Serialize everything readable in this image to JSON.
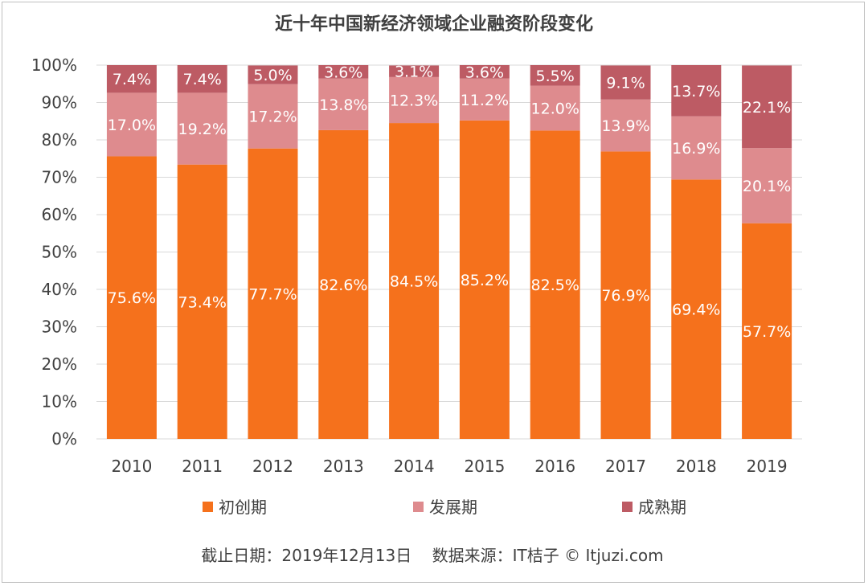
{
  "chart_data": {
    "type": "bar",
    "stacked": true,
    "title": "近十年中国新经济领域企业融资阶段变化",
    "categories": [
      "2010",
      "2011",
      "2012",
      "2013",
      "2014",
      "2015",
      "2016",
      "2017",
      "2018",
      "2019"
    ],
    "series": [
      {
        "name": "初创期",
        "color": "#f5711c",
        "values": [
          75.6,
          73.4,
          77.7,
          82.6,
          84.5,
          85.2,
          82.5,
          76.9,
          69.4,
          57.7
        ],
        "labels": [
          "75.6%",
          "73.4%",
          "77.7%",
          "82.6%",
          "84.5%",
          "85.2%",
          "82.5%",
          "76.9%",
          "69.4%",
          "57.7%"
        ]
      },
      {
        "name": "发展期",
        "color": "#de8b8e",
        "values": [
          17.0,
          19.2,
          17.2,
          13.8,
          12.3,
          11.2,
          12.0,
          13.9,
          16.9,
          20.1
        ],
        "labels": [
          "17.0%",
          "19.2%",
          "17.2%",
          "13.8%",
          "12.3%",
          "11.2%",
          "12.0%",
          "13.9%",
          "16.9%",
          "20.1%"
        ]
      },
      {
        "name": "成熟期",
        "color": "#bd5b64",
        "values": [
          7.4,
          7.4,
          5.0,
          3.6,
          3.1,
          3.6,
          5.5,
          9.1,
          13.7,
          22.1
        ],
        "labels": [
          "7.4%",
          "7.4%",
          "5.0%",
          "3.6%",
          "3.1%",
          "3.6%",
          "5.5%",
          "9.1%",
          "13.7%",
          "22.1%"
        ]
      }
    ],
    "ylim": [
      0,
      100
    ],
    "yticks": [
      "0%",
      "10%",
      "20%",
      "30%",
      "40%",
      "50%",
      "60%",
      "70%",
      "80%",
      "90%",
      "100%"
    ],
    "grid": true,
    "legend": "bottom"
  },
  "footer": "截止日期：2019年12月13日    数据来源：IT桔子 © Itjuzi.com",
  "colors": {
    "grid": "#d9d9d9",
    "text": "#404040",
    "label": "#ffffff"
  }
}
